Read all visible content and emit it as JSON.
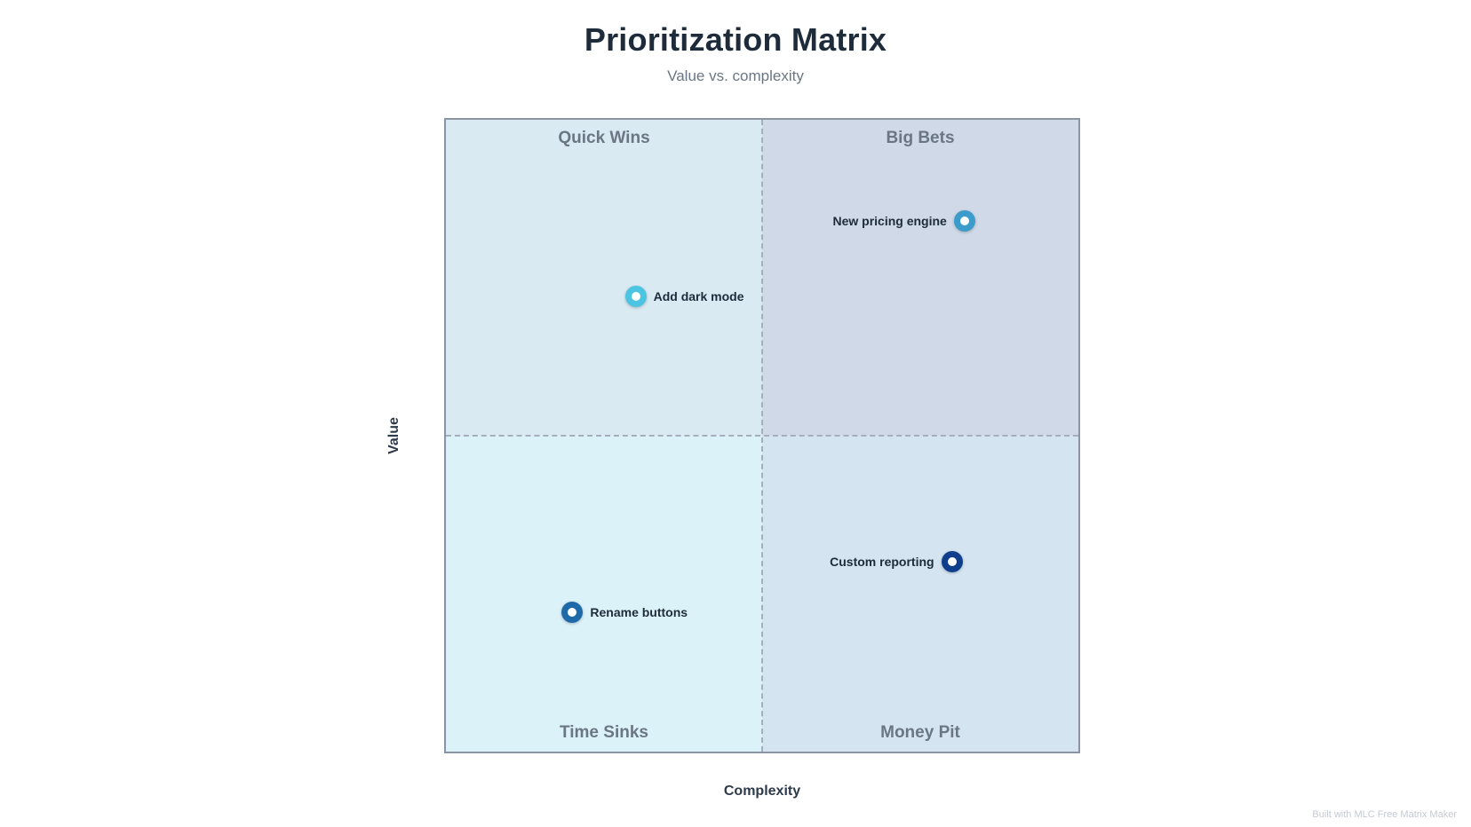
{
  "title": "Prioritization Matrix",
  "subtitle": "Value vs. complexity",
  "axes": {
    "x_label": "Complexity",
    "y_label": "Value"
  },
  "quadrants": {
    "top_left": "Quick Wins",
    "top_right": "Big Bets",
    "bottom_left": "Time Sinks",
    "bottom_right": "Money Pit"
  },
  "items": [
    {
      "label": "New pricing engine",
      "complexity": 0.82,
      "value": 0.84,
      "color": "#3b9ccc",
      "label_side": "left"
    },
    {
      "label": "Add dark mode",
      "complexity": 0.3,
      "value": 0.72,
      "color": "#4cc5e2",
      "label_side": "right"
    },
    {
      "label": "Custom reporting",
      "complexity": 0.8,
      "value": 0.3,
      "color": "#0f3f8c",
      "label_side": "left"
    },
    {
      "label": "Rename buttons",
      "complexity": 0.2,
      "value": 0.22,
      "color": "#1e6aa8",
      "label_side": "right"
    }
  ],
  "footer": "Built with MLC Free Matrix Maker"
}
